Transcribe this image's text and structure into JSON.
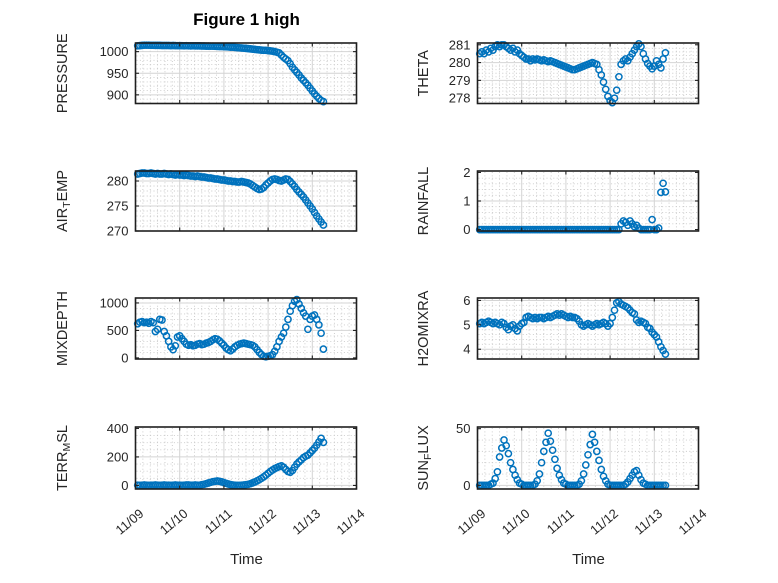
{
  "figure": {
    "title": "Figure 1 high",
    "xlabel": "Time",
    "background": "#ffffff",
    "marker_color": "#0072BD",
    "axis_color": "#1f1f1f",
    "text_color": "#262626",
    "grid_color": "#d4d4d4",
    "minor_grid_color": "#c9c9c9"
  },
  "axis": {
    "xlim": [
      0,
      5
    ],
    "xticks": [
      0,
      1,
      2,
      3,
      4,
      5
    ],
    "xtick_labels": [
      "11/09",
      "11/10",
      "11/11",
      "11/12",
      "11/13",
      "11/14"
    ],
    "x_minor_divisions": 6,
    "x_start": 0.05,
    "x_step": 0.05
  },
  "chart_data": [
    {
      "name": "PRESSURE",
      "type": "scatter",
      "row": 0,
      "col": 0,
      "ylabel_parts": [
        [
          "PRESSURE",
          false
        ]
      ],
      "ylim": [
        880,
        1020
      ],
      "yticks": [
        900,
        950,
        1000
      ],
      "y_minor_step": 10,
      "values": [
        1013.5,
        1014,
        1014.5,
        1014.8,
        1015,
        1014.8,
        1014.6,
        1014.7,
        1014.5,
        1014.4,
        1014.5,
        1014.3,
        1014.2,
        1014.3,
        1014.1,
        1014,
        1014.1,
        1013.9,
        1013.8,
        1013.9,
        1013.7,
        1013.6,
        1013.7,
        1013.5,
        1013.4,
        1013.5,
        1013.3,
        1013.2,
        1013.3,
        1013.1,
        1013,
        1012.9,
        1012.8,
        1012.7,
        1012.5,
        1012.4,
        1012.2,
        1012,
        1011.8,
        1011.5,
        1011.2,
        1010.9,
        1010.6,
        1010.2,
        1009.8,
        1009.4,
        1009,
        1008.5,
        1008,
        1007.5,
        1007,
        1006.4,
        1005.8,
        1005.2,
        1004.6,
        1004,
        1003.6,
        1003.2,
        1003,
        1002.5,
        1001.8,
        1001,
        1000,
        998.8,
        997.2,
        992,
        987,
        983,
        979,
        972,
        964,
        958,
        952,
        946,
        939,
        933.5,
        928,
        922,
        915.5,
        909,
        902.5,
        897,
        891.5,
        887,
        884.5
      ]
    },
    {
      "name": "THETA",
      "type": "scatter",
      "row": 0,
      "col": 1,
      "ylabel_parts": [
        [
          "THETA",
          false
        ]
      ],
      "ylim": [
        277.7,
        281.1
      ],
      "yticks": [
        278,
        279,
        280,
        281
      ],
      "y_minor_step": 0.2,
      "values": [
        280.5,
        280.6,
        280.5,
        280.7,
        280.6,
        280.8,
        280.7,
        280.9,
        281,
        280.9,
        281,
        281,
        280.9,
        280.8,
        280.7,
        280.8,
        280.6,
        280.7,
        280.5,
        280.4,
        280.3,
        280.2,
        280.2,
        280.1,
        280.2,
        280.15,
        280.2,
        280.15,
        280.1,
        280.15,
        280.1,
        280.05,
        280.1,
        280.05,
        280,
        279.95,
        279.9,
        279.85,
        279.8,
        279.75,
        279.7,
        279.65,
        279.6,
        279.6,
        279.65,
        279.7,
        279.75,
        279.8,
        279.85,
        279.9,
        279.95,
        280,
        279.95,
        279.9,
        279.6,
        279.3,
        278.9,
        278.5,
        278.1,
        277.85,
        277.75,
        278,
        278.45,
        279.2,
        279.9,
        280.1,
        280.2,
        280.1,
        280.3,
        280.5,
        280.7,
        280.9,
        281.05,
        280.9,
        280.5,
        280.2,
        279.95,
        279.8,
        279.65,
        279.8,
        280.1,
        279.9,
        279.7,
        280.2,
        280.55
      ]
    },
    {
      "name": "AIR_TEMP",
      "type": "scatter",
      "row": 1,
      "col": 0,
      "ylabel_parts": [
        [
          "AIR",
          false
        ],
        [
          "T",
          true
        ],
        [
          "EMP",
          false
        ]
      ],
      "ylim": [
        270,
        282
      ],
      "yticks": [
        270,
        275,
        280
      ],
      "y_minor_step": 1,
      "values": [
        281.4,
        281.5,
        281.6,
        281.6,
        281.5,
        281.5,
        281.6,
        281.5,
        281.4,
        281.5,
        281.4,
        281.4,
        281.5,
        281.4,
        281.3,
        281.4,
        281.3,
        281.2,
        281.3,
        281.2,
        281.2,
        281.1,
        281.2,
        281.1,
        281,
        281,
        280.9,
        281,
        280.9,
        280.8,
        280.8,
        280.7,
        280.6,
        280.6,
        280.5,
        280.4,
        280.4,
        280.3,
        280.2,
        280.2,
        280.1,
        280,
        280,
        279.9,
        279.9,
        279.8,
        279.8,
        279.9,
        279.8,
        279.7,
        279.6,
        279.4,
        279.1,
        278.8,
        278.5,
        278.3,
        278.4,
        278.7,
        279.2,
        279.6,
        280,
        280.3,
        280.4,
        280.3,
        280.1,
        280,
        280.2,
        280.4,
        280.3,
        279.9,
        279.4,
        278.9,
        278.3,
        277.8,
        277.3,
        276.8,
        276.2,
        275.6,
        275,
        274.4,
        273.7,
        273,
        272.4,
        271.8,
        271.2
      ]
    },
    {
      "name": "RAINFALL",
      "type": "scatter",
      "row": 1,
      "col": 1,
      "ylabel_parts": [
        [
          "RAINFALL",
          false
        ]
      ],
      "ylim": [
        -0.05,
        2.05
      ],
      "yticks": [
        0,
        1,
        2
      ],
      "y_minor_step": 0.2,
      "values": [
        0,
        0,
        0,
        0,
        0,
        0,
        0,
        0,
        0,
        0,
        0,
        0,
        0,
        0,
        0,
        0,
        0,
        0,
        0,
        0,
        0,
        0,
        0,
        0,
        0,
        0,
        0,
        0,
        0,
        0,
        0,
        0,
        0,
        0,
        0,
        0,
        0,
        0,
        0,
        0,
        0,
        0,
        0,
        0,
        0,
        0,
        0,
        0,
        0,
        0,
        0,
        0,
        0,
        0,
        0,
        0,
        0,
        0,
        0,
        0,
        0,
        0,
        0,
        0,
        0.2,
        0.3,
        0.25,
        0.15,
        0.3,
        0.2,
        0.1,
        0.15,
        0.05,
        0,
        0,
        0,
        0,
        0,
        0.35,
        0,
        0,
        0.05,
        1.3,
        1.62,
        1.32
      ]
    },
    {
      "name": "MIXDEPTH",
      "type": "scatter",
      "row": 2,
      "col": 0,
      "ylabel_parts": [
        [
          "MIXDEPTH",
          false
        ]
      ],
      "ylim": [
        -20,
        1090
      ],
      "yticks": [
        0,
        500,
        1000
      ],
      "y_minor_step": 100,
      "values": [
        620,
        650,
        660,
        640,
        650,
        630,
        660,
        640,
        480,
        520,
        700,
        690,
        480,
        400,
        300,
        200,
        150,
        220,
        380,
        400,
        350,
        300,
        250,
        230,
        240,
        220,
        230,
        250,
        260,
        240,
        250,
        270,
        280,
        300,
        330,
        350,
        340,
        310,
        270,
        230,
        180,
        150,
        130,
        160,
        200,
        230,
        250,
        260,
        270,
        260,
        250,
        240,
        230,
        200,
        150,
        100,
        60,
        30,
        20,
        30,
        40,
        60,
        120,
        200,
        300,
        380,
        450,
        560,
        700,
        850,
        950,
        1030,
        1060,
        980,
        900,
        820,
        760,
        520,
        700,
        760,
        780,
        700,
        600,
        450,
        160
      ]
    },
    {
      "name": "H2OMIXRA",
      "type": "scatter",
      "row": 2,
      "col": 1,
      "ylabel_parts": [
        [
          "H2OMIXRA",
          false
        ]
      ],
      "ylim": [
        3.6,
        6.1
      ],
      "yticks": [
        4,
        5,
        6
      ],
      "y_minor_step": 0.2,
      "values": [
        5.05,
        5.1,
        5.05,
        5.1,
        5.15,
        5.1,
        5.05,
        5.1,
        5.05,
        5,
        5.1,
        5.05,
        4.9,
        4.8,
        4.95,
        5,
        4.85,
        4.75,
        4.95,
        5.05,
        5.1,
        5.3,
        5.35,
        5.3,
        5.25,
        5.3,
        5.25,
        5.3,
        5.3,
        5.25,
        5.3,
        5.35,
        5.3,
        5.35,
        5.4,
        5.45,
        5.4,
        5.45,
        5.4,
        5.35,
        5.3,
        5.35,
        5.3,
        5.3,
        5.25,
        5.15,
        5,
        4.95,
        5,
        5.05,
        5,
        4.95,
        5,
        5.05,
        5,
        5.05,
        5.1,
        5.05,
        4.95,
        5.05,
        5.3,
        5.6,
        5.9,
        5.95,
        5.85,
        5.8,
        5.75,
        5.7,
        5.6,
        5.5,
        5.45,
        5.2,
        5.1,
        5.15,
        5.1,
        5.05,
        4.9,
        4.85,
        4.7,
        4.6,
        4.5,
        4.3,
        4.1,
        3.95,
        3.8
      ]
    },
    {
      "name": "TERR_MSL",
      "type": "scatter",
      "row": 3,
      "col": 0,
      "ylabel_parts": [
        [
          "TERR",
          false
        ],
        [
          "M",
          true
        ],
        [
          "SL",
          false
        ]
      ],
      "ylim": [
        -25,
        410
      ],
      "yticks": [
        0,
        200,
        400
      ],
      "y_minor_step": 50,
      "values": [
        2,
        1,
        2,
        3,
        2,
        1,
        2,
        2,
        3,
        2,
        1,
        2,
        3,
        2,
        2,
        1,
        2,
        3,
        2,
        2,
        1,
        2,
        3,
        3,
        2,
        2,
        3,
        2,
        2,
        5,
        8,
        12,
        17,
        22,
        26,
        29,
        31,
        29,
        25,
        20,
        15,
        10,
        6,
        3,
        2,
        1,
        1,
        2,
        3,
        5,
        8,
        12,
        18,
        24,
        32,
        40,
        50,
        60,
        72,
        85,
        98,
        108,
        118,
        125,
        132,
        138,
        128,
        112,
        98,
        92,
        105,
        128,
        150,
        165,
        180,
        195,
        205,
        212,
        228,
        245,
        262,
        282,
        305,
        330,
        302
      ]
    },
    {
      "name": "SUN_FLUX",
      "type": "scatter",
      "row": 3,
      "col": 1,
      "ylabel_parts": [
        [
          "SUN",
          false
        ],
        [
          "F",
          true
        ],
        [
          "LUX",
          false
        ]
      ],
      "ylim": [
        -3.2,
        51.5
      ],
      "yticks": [
        0,
        50
      ],
      "y_minor_step": 10,
      "values": [
        0,
        0,
        0,
        0,
        0,
        1,
        2,
        6,
        12,
        25,
        33,
        40,
        35,
        28,
        20,
        14,
        9,
        5,
        2,
        1,
        0,
        0,
        0,
        0,
        0,
        1,
        4,
        10,
        20,
        30,
        38,
        46,
        39,
        31,
        23,
        15,
        9,
        5,
        2,
        1,
        0,
        0,
        0,
        0,
        0,
        1,
        4,
        10,
        18,
        27,
        36,
        45,
        38,
        30,
        22,
        14,
        8,
        4,
        1,
        0,
        0,
        0,
        0,
        0,
        0,
        0,
        1,
        3,
        6,
        9,
        12,
        13,
        9,
        5,
        2,
        1,
        0,
        0,
        0,
        0,
        0,
        0,
        0,
        0,
        0
      ]
    }
  ]
}
